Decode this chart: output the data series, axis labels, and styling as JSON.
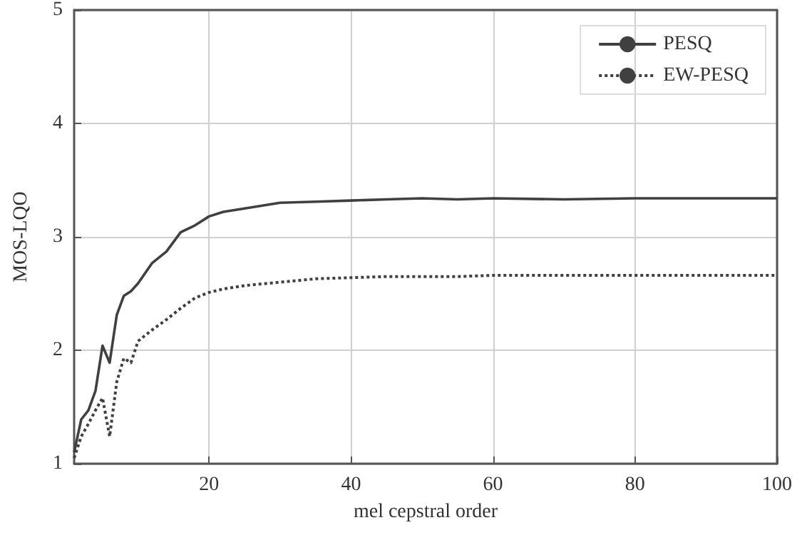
{
  "chart_data": {
    "type": "line",
    "xlabel": "mel cepstral order",
    "ylabel": "MOS-LQO",
    "x": [
      1,
      2,
      3,
      4,
      5,
      6,
      7,
      8,
      9,
      10,
      12,
      14,
      16,
      18,
      20,
      22,
      25,
      30,
      35,
      40,
      45,
      50,
      55,
      60,
      70,
      80,
      90,
      100
    ],
    "series": [
      {
        "name": "PESQ",
        "color": "#404040",
        "line_style": "solid",
        "values": [
          1.1,
          1.39,
          1.47,
          1.64,
          2.04,
          1.89,
          2.31,
          2.48,
          2.52,
          2.59,
          2.77,
          2.87,
          3.04,
          3.1,
          3.18,
          3.22,
          3.25,
          3.3,
          3.31,
          3.32,
          3.33,
          3.34,
          3.33,
          3.34,
          3.33,
          3.34,
          3.34,
          3.34
        ]
      },
      {
        "name": "EW-PESQ",
        "color": "#404040",
        "line_style": "dotted",
        "values": [
          1.05,
          1.24,
          1.35,
          1.47,
          1.58,
          1.24,
          1.72,
          1.93,
          1.89,
          2.08,
          2.18,
          2.27,
          2.37,
          2.46,
          2.51,
          2.54,
          2.57,
          2.6,
          2.63,
          2.64,
          2.65,
          2.65,
          2.65,
          2.66,
          2.66,
          2.66,
          2.66,
          2.66
        ]
      }
    ],
    "xlim": [
      1,
      100
    ],
    "xticks": [
      20,
      40,
      60,
      80,
      100
    ],
    "ylim": [
      1,
      5
    ],
    "yticks": [
      1,
      2,
      3,
      4,
      5
    ],
    "grid": true,
    "legend": "top right",
    "marker": "none"
  }
}
